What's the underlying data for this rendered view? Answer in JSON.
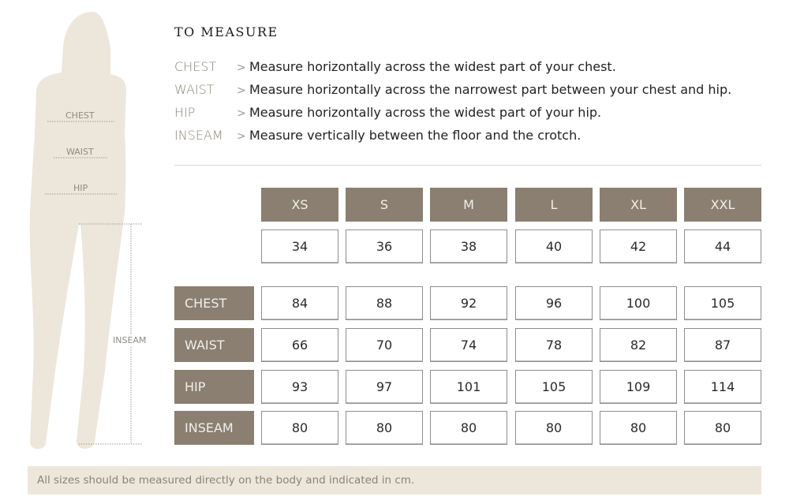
{
  "title": "TO MEASURE",
  "measures": [
    {
      "term": "CHEST",
      "desc": "Measure horizontally across the widest part of your chest."
    },
    {
      "term": "WAIST",
      "desc": "Measure horizontally across the narrowest part between your chest and hip."
    },
    {
      "term": "HIP",
      "desc": "Measure horizontally across the widest part of your hip."
    },
    {
      "term": "INSEAM",
      "desc": "Measure vertically between the floor and the crotch."
    }
  ],
  "arrow": ">",
  "figure_labels": {
    "chest": "CHEST",
    "waist": "WAIST",
    "hip": "HIP",
    "inseam": "INSEAM"
  },
  "sizes": [
    "XS",
    "S",
    "M",
    "L",
    "XL",
    "XXL"
  ],
  "size_numbers": [
    "34",
    "36",
    "38",
    "40",
    "42",
    "44"
  ],
  "rows": [
    {
      "label": "CHEST",
      "values": [
        "84",
        "88",
        "92",
        "96",
        "100",
        "105"
      ]
    },
    {
      "label": "WAIST",
      "values": [
        "66",
        "70",
        "74",
        "78",
        "82",
        "87"
      ]
    },
    {
      "label": "HIP",
      "values": [
        "93",
        "97",
        "101",
        "105",
        "109",
        "114"
      ]
    },
    {
      "label": "INSEAM",
      "values": [
        "80",
        "80",
        "80",
        "80",
        "80",
        "80"
      ]
    }
  ],
  "footer": "All sizes should be measured directly on the body and indicated in cm.",
  "colors": {
    "header_bg": "#8a7f71",
    "silhouette": "#ede6da",
    "footer_bg": "#ede6da"
  }
}
